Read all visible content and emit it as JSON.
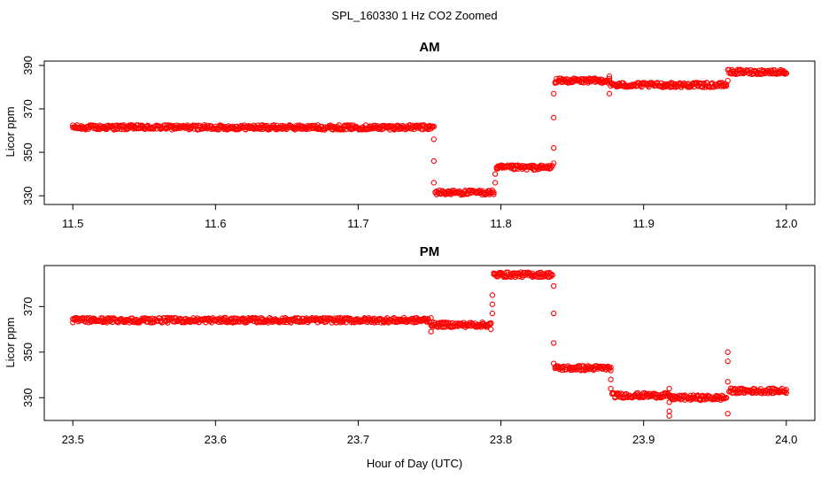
{
  "figure": {
    "title": "SPL_160330  1 Hz CO2 Zoomed",
    "xlabel": "Hour of Day (UTC)"
  },
  "colors": {
    "points": "#ff0000",
    "axis": "#000000",
    "background": "#ffffff"
  },
  "chart_data": [
    {
      "type": "scatter",
      "title": "AM",
      "xlabel": "",
      "ylabel": "Licor ppm",
      "xlim": [
        11.48,
        12.02
      ],
      "ylim": [
        326,
        392
      ],
      "xticks": [
        11.5,
        11.6,
        11.7,
        11.8,
        11.9,
        12.0
      ],
      "xtick_labels": [
        "11.5",
        "11.6",
        "11.7",
        "11.8",
        "11.9",
        "12.0"
      ],
      "yticks": [
        330,
        350,
        370,
        390
      ],
      "ytick_labels": [
        "330",
        "350",
        "370",
        "390"
      ],
      "grid": false,
      "legend": "none",
      "series": [
        {
          "plateaus": [
            {
              "x_start": 11.5,
              "x_end": 11.753,
              "y": 361.5
            },
            {
              "x_start": 11.754,
              "x_end": 11.795,
              "y": 331.5
            },
            {
              "x_start": 11.797,
              "x_end": 11.836,
              "y": 343
            },
            {
              "x_start": 11.838,
              "x_end": 11.876,
              "y": 383
            },
            {
              "x_start": 11.877,
              "x_end": 11.958,
              "y": 381
            },
            {
              "x_start": 11.96,
              "x_end": 12.0,
              "y": 387
            }
          ],
          "transition_points": [
            {
              "x": 11.753,
              "y": 356
            },
            {
              "x": 11.753,
              "y": 346
            },
            {
              "x": 11.753,
              "y": 336
            },
            {
              "x": 11.796,
              "y": 336
            },
            {
              "x": 11.796,
              "y": 340
            },
            {
              "x": 11.837,
              "y": 377
            },
            {
              "x": 11.837,
              "y": 366
            },
            {
              "x": 11.837,
              "y": 352
            },
            {
              "x": 11.837,
              "y": 345
            },
            {
              "x": 11.876,
              "y": 385
            },
            {
              "x": 11.876,
              "y": 377
            },
            {
              "x": 11.959,
              "y": 383
            },
            {
              "x": 11.959,
              "y": 388
            }
          ]
        }
      ]
    },
    {
      "type": "scatter",
      "title": "PM",
      "xlabel": "",
      "ylabel": "Licor ppm",
      "xlim": [
        23.48,
        24.02
      ],
      "ylim": [
        320,
        388
      ],
      "xticks": [
        23.5,
        23.6,
        23.7,
        23.8,
        23.9,
        24.0
      ],
      "xtick_labels": [
        "23.5",
        "23.6",
        "23.7",
        "23.8",
        "23.9",
        "24.0"
      ],
      "yticks": [
        330,
        350,
        370
      ],
      "ytick_labels": [
        "330",
        "350",
        "370"
      ],
      "grid": false,
      "legend": "none",
      "series": [
        {
          "plateaus": [
            {
              "x_start": 23.5,
              "x_end": 23.75,
              "y": 364
            },
            {
              "x_start": 23.751,
              "x_end": 23.793,
              "y": 362
            },
            {
              "x_start": 23.795,
              "x_end": 23.836,
              "y": 384
            },
            {
              "x_start": 23.838,
              "x_end": 23.877,
              "y": 343
            },
            {
              "x_start": 23.878,
              "x_end": 23.918,
              "y": 331
            },
            {
              "x_start": 23.919,
              "x_end": 23.958,
              "y": 330
            },
            {
              "x_start": 23.96,
              "x_end": 24.0,
              "y": 333
            }
          ],
          "transition_points": [
            {
              "x": 23.751,
              "y": 359
            },
            {
              "x": 23.751,
              "y": 365
            },
            {
              "x": 23.793,
              "y": 360
            },
            {
              "x": 23.794,
              "y": 367
            },
            {
              "x": 23.794,
              "y": 371
            },
            {
              "x": 23.794,
              "y": 375
            },
            {
              "x": 23.837,
              "y": 379
            },
            {
              "x": 23.837,
              "y": 367
            },
            {
              "x": 23.837,
              "y": 354
            },
            {
              "x": 23.837,
              "y": 345
            },
            {
              "x": 23.877,
              "y": 338
            },
            {
              "x": 23.877,
              "y": 334
            },
            {
              "x": 23.918,
              "y": 334
            },
            {
              "x": 23.918,
              "y": 328
            },
            {
              "x": 23.918,
              "y": 324
            },
            {
              "x": 23.918,
              "y": 322
            },
            {
              "x": 23.959,
              "y": 350
            },
            {
              "x": 23.959,
              "y": 346
            },
            {
              "x": 23.959,
              "y": 337
            },
            {
              "x": 23.959,
              "y": 323
            }
          ]
        }
      ]
    }
  ]
}
